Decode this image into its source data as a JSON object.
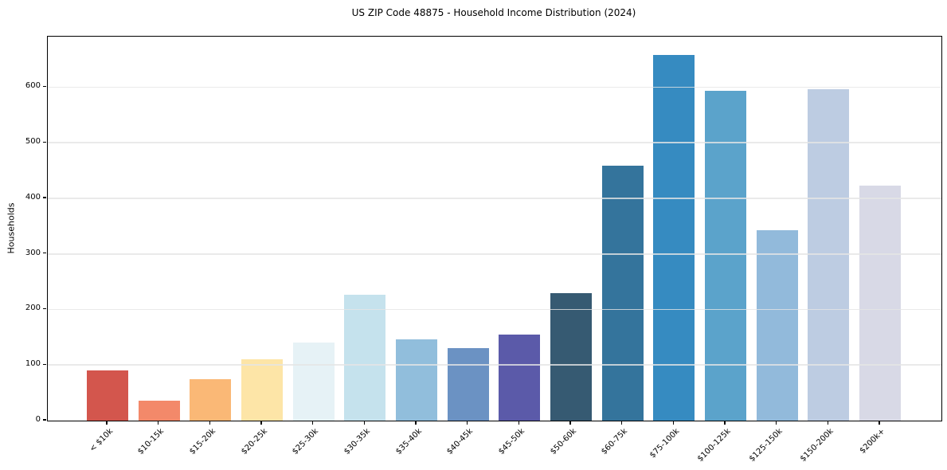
{
  "chart_data": {
    "type": "bar",
    "title": "US ZIP Code 48875 - Household Income Distribution (2024)",
    "xlabel": "",
    "ylabel": "Households",
    "categories": [
      "< $10k",
      "$10-15k",
      "$15-20k",
      "$20-25k",
      "$25-30k",
      "$30-35k",
      "$35-40k",
      "$40-45k",
      "$45-50k",
      "$50-60k",
      "$60-75k",
      "$75-100k",
      "$100-125k",
      "$125-150k",
      "$150-200k",
      "$200k+"
    ],
    "values": [
      90,
      36,
      74,
      110,
      140,
      227,
      146,
      130,
      155,
      230,
      459,
      658,
      594,
      343,
      596,
      423
    ],
    "bar_colors": [
      "#d3564d",
      "#f3896a",
      "#fab876",
      "#fde5a7",
      "#e6f2f6",
      "#c5e2ed",
      "#91bedc",
      "#6b92c3",
      "#5b5aa9",
      "#365a72",
      "#34749c",
      "#368bc1",
      "#5ba3cb",
      "#92badb",
      "#bdcce2",
      "#d8d9e6"
    ],
    "ylim": [
      0,
      691
    ],
    "yticks": [
      0,
      100,
      200,
      300,
      400,
      500,
      600
    ],
    "grid": "horizontal gridlines at y ticks, light gray, drawn over bars",
    "gridline_color": "#e5e5e5",
    "spine_color": "#000000",
    "background_color": "#ffffff",
    "legend": "none",
    "xtick_rotation_deg": 45
  }
}
